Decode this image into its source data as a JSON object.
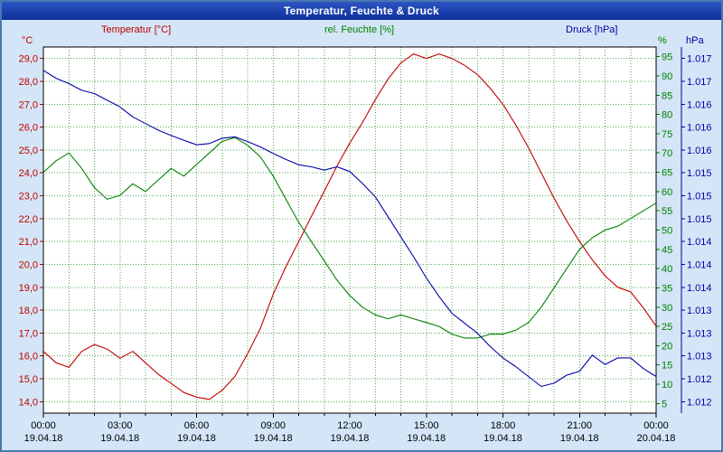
{
  "window": {
    "title": "Temperatur, Feuchte & Druck"
  },
  "header": {
    "temp_axis_title": "Temperatur [°C]",
    "hum_axis_title": "rel. Feuchte [%]",
    "press_axis_title": "Druck [hPa]",
    "temp_unit": "°C",
    "hum_unit": "%",
    "press_unit": "hPa"
  },
  "chart_data": {
    "type": "line",
    "title": "Temperatur, Feuchte & Druck",
    "plot_bg": "#ffffff",
    "grid_color": "#55aa55",
    "grid_on": true,
    "x_interval_hours": 0.5,
    "x_tick_hours": [
      0,
      3,
      6,
      9,
      12,
      15,
      18,
      21,
      24
    ],
    "x_ticks": [
      {
        "time": "00:00",
        "date": "19.04.18"
      },
      {
        "time": "03:00",
        "date": "19.04.18"
      },
      {
        "time": "06:00",
        "date": "19.04.18"
      },
      {
        "time": "09:00",
        "date": "19.04.18"
      },
      {
        "time": "12:00",
        "date": "19.04.18"
      },
      {
        "time": "15:00",
        "date": "19.04.18"
      },
      {
        "time": "18:00",
        "date": "19.04.18"
      },
      {
        "time": "21:00",
        "date": "19.04.18"
      },
      {
        "time": "00:00",
        "date": "20.04.18"
      }
    ],
    "axes": {
      "temperature": {
        "unit": "°C",
        "color": "#c00000",
        "min": 13.5,
        "max": 29.5,
        "tick_labels": [
          "29,0",
          "28,0",
          "27,0",
          "26,0",
          "25,0",
          "24,0",
          "23,0",
          "22,0",
          "21,0",
          "20,0",
          "19,0",
          "18,0",
          "17,0",
          "16,0",
          "15,0",
          "14,0"
        ]
      },
      "humidity": {
        "unit": "%",
        "color": "#008000",
        "min": 2.5,
        "max": 97.5,
        "tick_labels": [
          "95",
          "90",
          "85",
          "80",
          "75",
          "70",
          "65",
          "60",
          "55",
          "50",
          "45",
          "40",
          "35",
          "30",
          "25",
          "20",
          "15",
          "10",
          "5"
        ]
      },
      "pressure": {
        "unit": "hPa",
        "color": "#0000a8",
        "min": 1.01175,
        "max": 1.01725,
        "tick_labels": [
          "1.017",
          "1.017",
          "1.016",
          "1.016",
          "1.016",
          "1.015",
          "1.015",
          "1.015",
          "1.014",
          "1.014",
          "1.014",
          "1.013",
          "1.013",
          "1.013",
          "1.012",
          "1.012"
        ]
      }
    },
    "series": [
      {
        "name": "Temperatur",
        "slug": "temperature",
        "axis": "temperature",
        "color": "#c00000",
        "values": [
          16.2,
          15.7,
          15.5,
          16.2,
          16.5,
          16.3,
          15.9,
          16.2,
          15.7,
          15.2,
          14.8,
          14.4,
          14.2,
          14.1,
          14.5,
          15.1,
          16.1,
          17.2,
          18.7,
          19.9,
          21.0,
          22.1,
          23.2,
          24.3,
          25.3,
          26.2,
          27.2,
          28.1,
          28.8,
          29.2,
          29.0,
          29.2,
          29.0,
          28.7,
          28.3,
          27.7,
          27.0,
          26.1,
          25.1,
          24.0,
          22.9,
          21.9,
          21.0,
          20.2,
          19.5,
          19.0,
          18.8,
          18.1,
          17.3
        ]
      },
      {
        "name": "rel. Feuchte",
        "slug": "humidity",
        "axis": "humidity",
        "color": "#008000",
        "values": [
          65,
          68,
          70,
          66,
          61,
          58,
          59,
          62,
          60,
          63,
          66,
          64,
          67,
          70,
          73,
          74,
          72,
          69,
          64,
          58,
          52,
          47,
          42,
          37,
          33,
          30,
          28,
          27,
          28,
          27,
          26,
          25,
          23,
          22,
          22,
          23,
          23,
          24,
          26,
          30,
          35,
          40,
          45,
          48,
          50,
          51,
          53,
          55,
          57
        ]
      },
      {
        "name": "Druck",
        "slug": "pressure",
        "axis": "pressure",
        "color": "#0000a8",
        "values": [
          1.0169,
          1.01678,
          1.0167,
          1.0166,
          1.01655,
          1.01645,
          1.01635,
          1.0162,
          1.0161,
          1.016,
          1.01592,
          1.01585,
          1.01578,
          1.0158,
          1.01588,
          1.0159,
          1.01583,
          1.01575,
          1.01565,
          1.01556,
          1.01548,
          1.01545,
          1.0154,
          1.01545,
          1.01538,
          1.0152,
          1.015,
          1.0147,
          1.0144,
          1.0141,
          1.01378,
          1.0135,
          1.01325,
          1.0131,
          1.01295,
          1.01275,
          1.01258,
          1.01245,
          1.0123,
          1.01215,
          1.0122,
          1.01232,
          1.01238,
          1.01262,
          1.01248,
          1.01258,
          1.01258,
          1.01242,
          1.0123
        ]
      }
    ]
  }
}
